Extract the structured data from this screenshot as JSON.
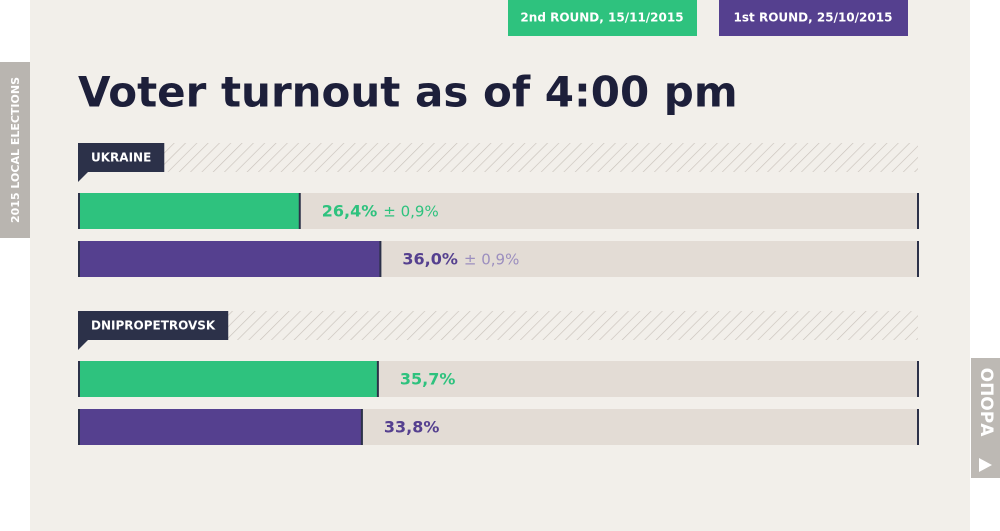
{
  "side_label": "2015 LOCAL ELECTIONS",
  "logo": "ОПОРА",
  "chart_data": {
    "type": "bar",
    "orientation": "horizontal",
    "title": "Voter turnout as of 4:00 pm",
    "categories": [
      "UKRAINE",
      "DNIPROPETROVSK"
    ],
    "xlim": [
      0,
      100
    ],
    "series": [
      {
        "name": "2nd ROUND, 15/11/2015",
        "color": "#2ec27e",
        "values": [
          26.4,
          35.7
        ],
        "value_labels": [
          "26,4%",
          "35,7%"
        ],
        "error_labels": [
          "± 0,9%",
          null
        ]
      },
      {
        "name": "1st ROUND, 25/10/2015",
        "color": "#55408f",
        "values": [
          36.0,
          33.8
        ],
        "value_labels": [
          "36,0%",
          "33,8%"
        ],
        "error_labels": [
          "± 0,9%",
          null
        ]
      }
    ]
  }
}
